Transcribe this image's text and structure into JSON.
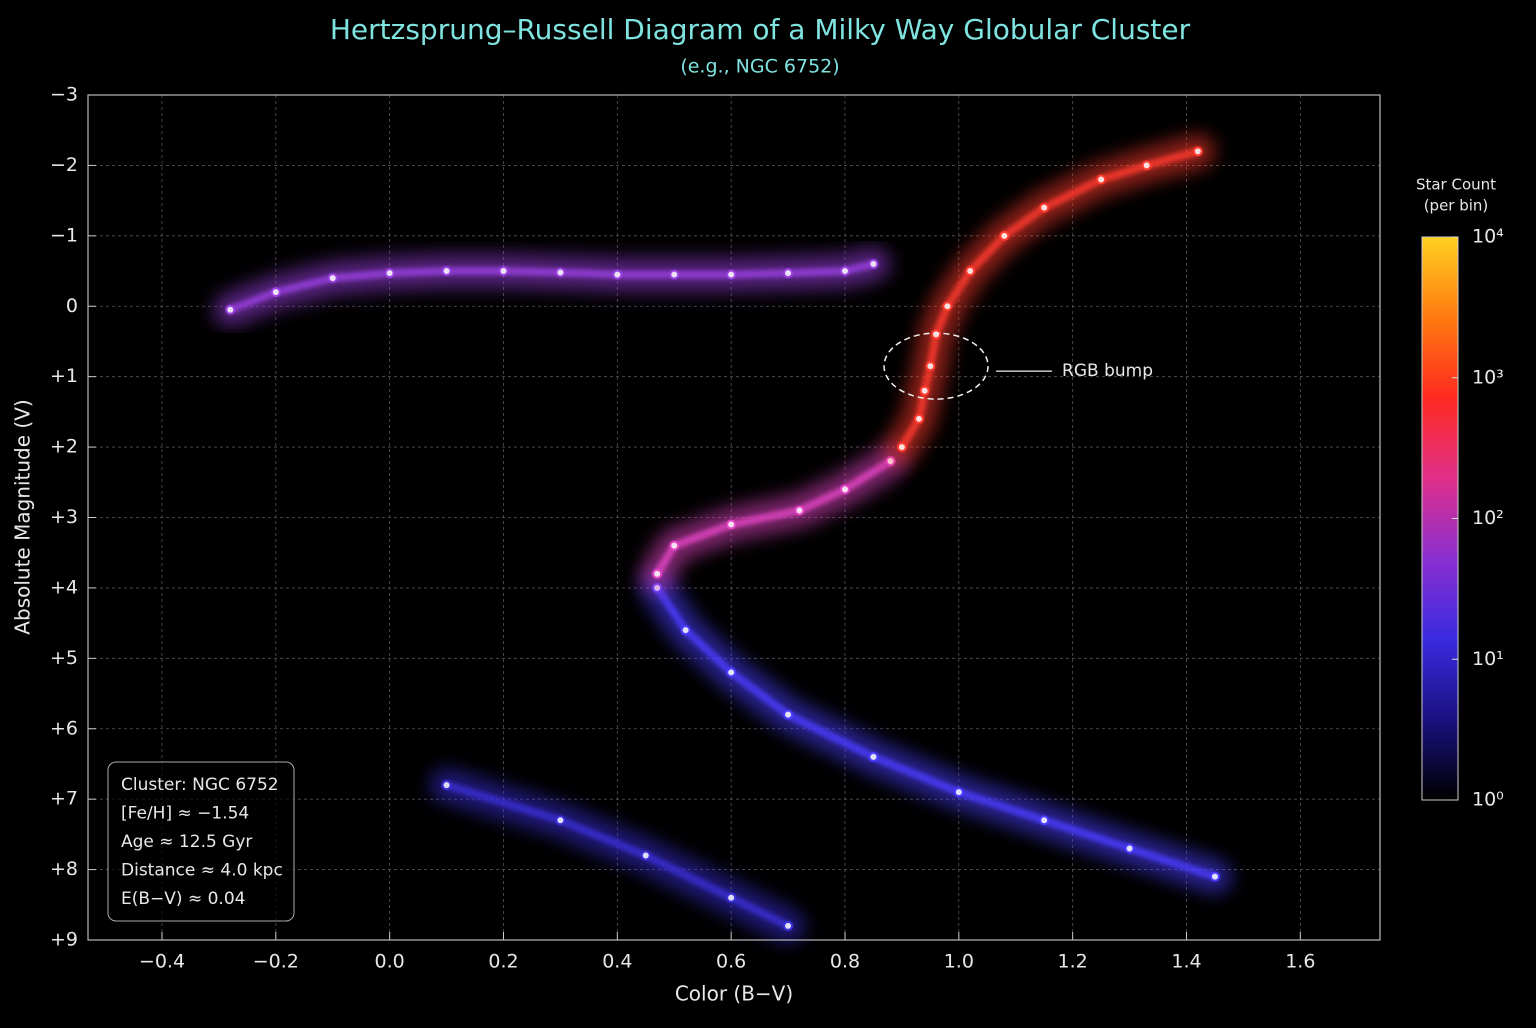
{
  "chart_data": {
    "type": "scatter",
    "title": "Hertzsprung–Russell Diagram of a Milky Way Globular Cluster",
    "subtitle": "(e.g., NGC 6752)",
    "x_label": "Color (B−V)",
    "y_label": "Absolute Magnitude (V)",
    "xlim": [
      -0.53,
      1.74
    ],
    "ylim": [
      -3,
      9
    ],
    "y_inverted": true,
    "grid": true,
    "xticks": [
      {
        "value": -0.4,
        "label": "−0.4"
      },
      {
        "value": -0.2,
        "label": "−0.2"
      },
      {
        "value": 0,
        "label": "0.0"
      },
      0.2,
      0.4,
      0.6,
      0.8,
      {
        "value": 1,
        "label": "1.0"
      },
      1.2,
      1.4,
      1.6
    ],
    "yticks": [
      {
        "value": -3,
        "label": "−3"
      },
      {
        "value": -2,
        "label": "−2"
      },
      {
        "value": -1,
        "label": "−1"
      },
      0,
      {
        "value": 1,
        "label": "+1"
      },
      {
        "value": 2,
        "label": "+2"
      },
      {
        "value": 3,
        "label": "+3"
      },
      {
        "value": 4,
        "label": "+4"
      },
      {
        "value": 5,
        "label": "+5"
      },
      {
        "value": 6,
        "label": "+6"
      },
      {
        "value": 7,
        "label": "+7"
      },
      {
        "value": 8,
        "label": "+8"
      },
      {
        "value": 9,
        "label": "+9"
      }
    ],
    "series": [
      {
        "color": "#9a3fe0",
        "x": [
          -0.28,
          -0.2,
          -0.1,
          0.0,
          0.1,
          0.2,
          0.3,
          0.4,
          0.5,
          0.6,
          0.7,
          0.8,
          0.85
        ],
        "values": [
          0.05,
          -0.2,
          -0.4,
          -0.47,
          -0.5,
          -0.5,
          -0.48,
          -0.45,
          -0.45,
          -0.45,
          -0.47,
          -0.5,
          -0.6
        ]
      },
      {
        "color": "#4b3cff",
        "x": [
          0.47,
          0.52,
          0.6,
          0.7,
          0.85,
          1.0,
          1.15,
          1.3,
          1.45
        ],
        "values": [
          4.0,
          4.6,
          5.2,
          5.8,
          6.4,
          6.9,
          7.3,
          7.7,
          8.1
        ]
      },
      {
        "color": "#3a2fd6",
        "x": [
          0.1,
          0.3,
          0.45,
          0.6,
          0.7
        ],
        "values": [
          6.8,
          7.3,
          7.8,
          8.4,
          8.8
        ]
      },
      {
        "color": "#e244c4",
        "x": [
          0.47,
          0.5,
          0.6,
          0.72,
          0.8,
          0.88
        ],
        "values": [
          3.8,
          3.4,
          3.1,
          2.9,
          2.6,
          2.2
        ]
      },
      {
        "color": "#ff3a2e",
        "x": [
          0.9,
          0.93,
          0.94,
          0.95,
          0.96,
          0.98,
          1.02,
          1.08,
          1.15,
          1.25,
          1.33,
          1.42
        ],
        "values": [
          2.0,
          1.6,
          1.2,
          0.85,
          0.4,
          0.0,
          -0.5,
          -1.0,
          -1.4,
          -1.8,
          -2.0,
          -2.2
        ]
      }
    ],
    "annotation": {
      "text": "RGB bump",
      "x": 0.96,
      "y": 0.85
    },
    "info_box": [
      "Cluster: NGC 6752",
      "[Fe/H] ≈ −1.54",
      "Age ≈ 12.5 Gyr",
      "Distance ≈ 4.0 kpc",
      "E(B−V) ≈ 0.04"
    ],
    "colorbar": {
      "label_lines": [
        "Star Count",
        "(per bin)"
      ],
      "log": true,
      "lim": [
        1,
        10000
      ],
      "ticks": [
        {
          "value": 1,
          "label": "10⁰"
        },
        {
          "value": 10,
          "label": "10¹"
        },
        {
          "value": 100,
          "label": "10²"
        },
        {
          "value": 1000,
          "label": "10³"
        },
        {
          "value": 10000,
          "label": "10⁴"
        }
      ],
      "colors": [
        "#000000",
        "#1a1080",
        "#3a2ae0",
        "#8a2fd0",
        "#e02f8a",
        "#ff2a20",
        "#ff7a10",
        "#ffd020"
      ]
    }
  }
}
